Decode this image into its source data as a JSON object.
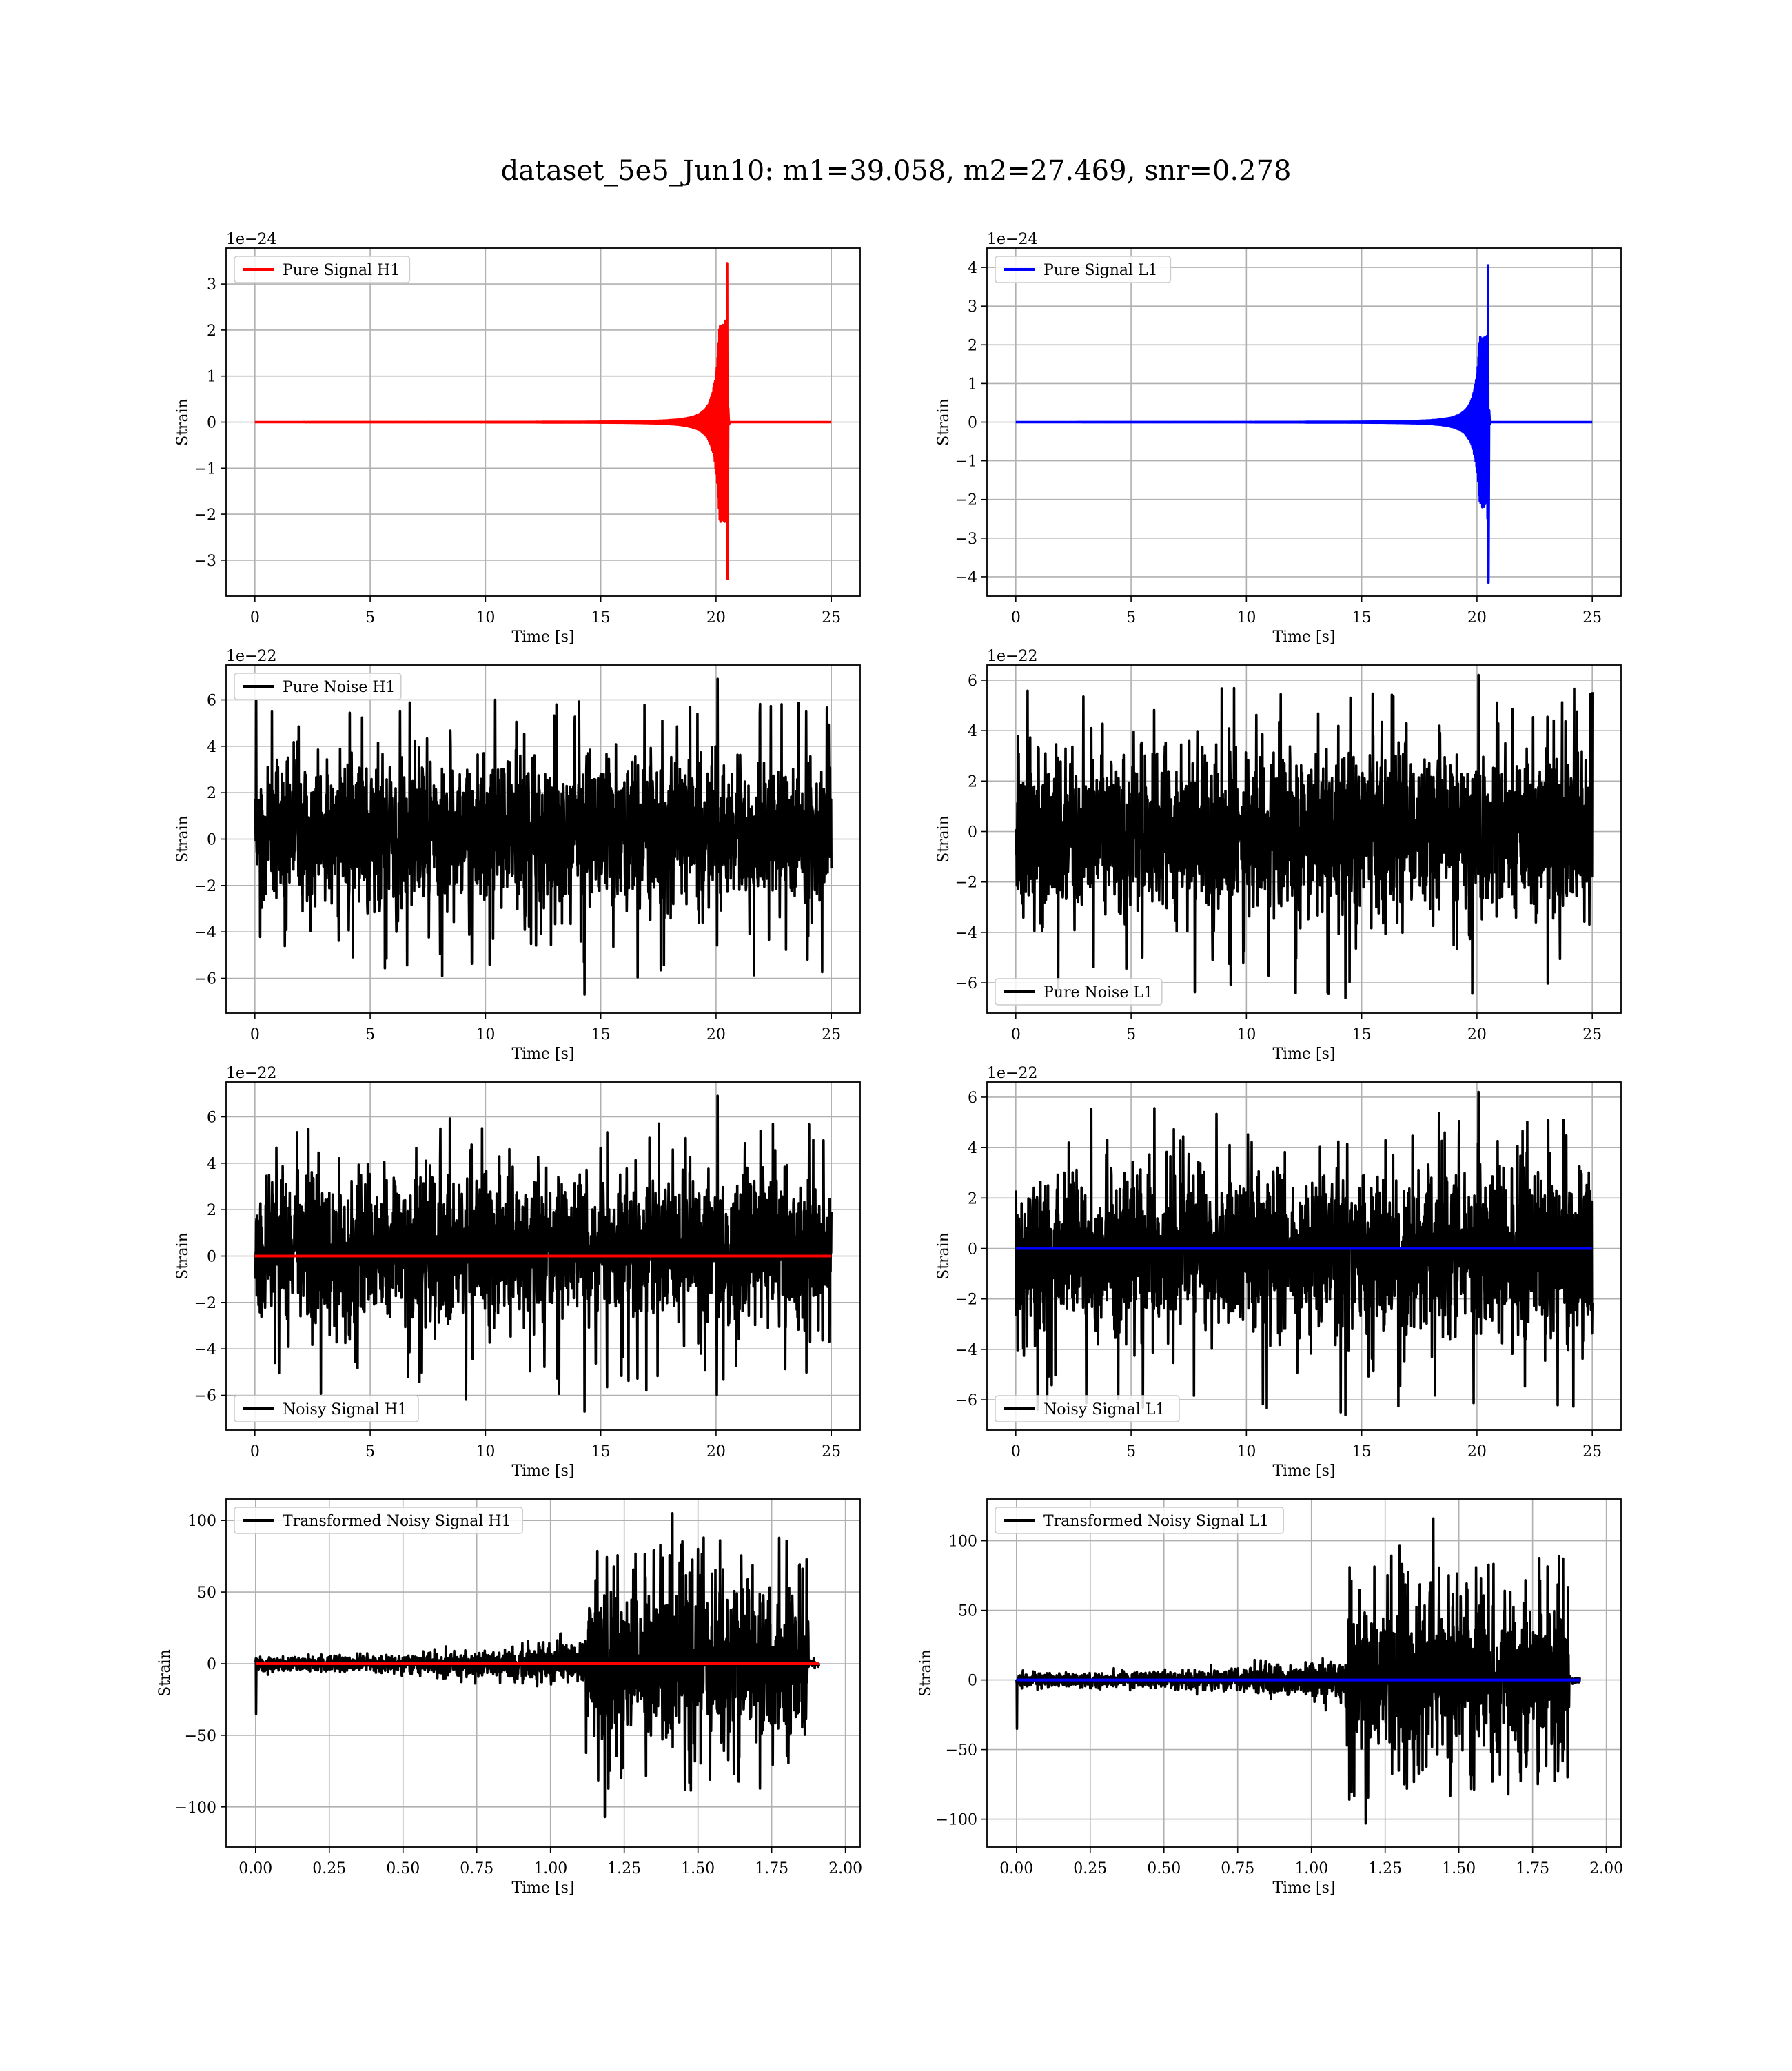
{
  "figure": {
    "title": "dataset_5e5_Jun10: m1=39.058, m2=27.469, snr=0.278"
  },
  "colors": {
    "h1_signal": "#ff0000",
    "l1_signal": "#0000ff",
    "noise": "#000000",
    "grid": "#b0b0b0"
  },
  "chart_data": [
    {
      "type": "line",
      "id": "pure-signal-h1",
      "xlabel": "Time [s]",
      "ylabel": "Strain",
      "offset_text": "1e−24",
      "xlim": [
        -1.25,
        26.25
      ],
      "ylim": [
        -3.78,
        3.78
      ],
      "xticks": [
        0,
        5,
        10,
        15,
        20,
        25
      ],
      "xtick_labels": [
        "0",
        "5",
        "10",
        "15",
        "20",
        "25"
      ],
      "yticks": [
        -3,
        -2,
        -1,
        0,
        1,
        2,
        3
      ],
      "ytick_labels": [
        "−3",
        "−2",
        "−1",
        "0",
        "1",
        "2",
        "3"
      ],
      "grid": true,
      "legend_loc": "upper left",
      "series": [
        {
          "name": "Pure Signal H1",
          "color": "#ff0000",
          "kind": "chirp",
          "x_range": [
            0,
            25
          ],
          "merger_time": 20.5,
          "peak_pos": 3.45,
          "peak_neg": -3.4,
          "envelope_at_19": 0.12,
          "envelope_at_20": 1.1
        }
      ]
    },
    {
      "type": "line",
      "id": "pure-signal-l1",
      "xlabel": "Time [s]",
      "ylabel": "Strain",
      "offset_text": "1e−24",
      "xlim": [
        -1.25,
        26.25
      ],
      "ylim": [
        -4.5,
        4.5
      ],
      "xticks": [
        0,
        5,
        10,
        15,
        20,
        25
      ],
      "xtick_labels": [
        "0",
        "5",
        "10",
        "15",
        "20",
        "25"
      ],
      "yticks": [
        -4,
        -3,
        -2,
        -1,
        0,
        1,
        2,
        3,
        4
      ],
      "ytick_labels": [
        "−4",
        "−3",
        "−2",
        "−1",
        "0",
        "1",
        "2",
        "3",
        "4"
      ],
      "grid": true,
      "legend_loc": "upper left",
      "series": [
        {
          "name": "Pure Signal L1",
          "color": "#0000ff",
          "kind": "chirp",
          "x_range": [
            0,
            25
          ],
          "merger_time": 20.5,
          "peak_pos": 4.05,
          "peak_neg": -4.15,
          "envelope_at_19": 0.14,
          "envelope_at_20": 1.3
        }
      ]
    },
    {
      "type": "line",
      "id": "pure-noise-h1",
      "xlabel": "Time [s]",
      "ylabel": "Strain",
      "offset_text": "1e−22",
      "xlim": [
        -1.25,
        26.25
      ],
      "ylim": [
        -7.5,
        7.5
      ],
      "xticks": [
        0,
        5,
        10,
        15,
        20,
        25
      ],
      "xtick_labels": [
        "0",
        "5",
        "10",
        "15",
        "20",
        "25"
      ],
      "yticks": [
        -6,
        -4,
        -2,
        0,
        2,
        4,
        6
      ],
      "ytick_labels": [
        "−6",
        "−4",
        "−2",
        "0",
        "2",
        "4",
        "6"
      ],
      "grid": true,
      "legend_loc": "upper left",
      "series": [
        {
          "name": "Pure Noise H1",
          "color": "#000000",
          "kind": "noise",
          "x_range": [
            0,
            25
          ],
          "band": [
            -3.0,
            3.5
          ],
          "max": 6.9,
          "min": -6.7
        }
      ]
    },
    {
      "type": "line",
      "id": "pure-noise-l1",
      "xlabel": "Time [s]",
      "ylabel": "Strain",
      "offset_text": "1e−22",
      "xlim": [
        -1.25,
        26.25
      ],
      "ylim": [
        -7.2,
        6.6
      ],
      "xticks": [
        0,
        5,
        10,
        15,
        20,
        25
      ],
      "xtick_labels": [
        "0",
        "5",
        "10",
        "15",
        "20",
        "25"
      ],
      "yticks": [
        -6,
        -4,
        -2,
        0,
        2,
        4,
        6
      ],
      "ytick_labels": [
        "−6",
        "−4",
        "−2",
        "0",
        "2",
        "4",
        "6"
      ],
      "grid": true,
      "legend_loc": "lower left",
      "series": [
        {
          "name": "Pure Noise L1",
          "color": "#000000",
          "kind": "noise",
          "x_range": [
            0,
            25
          ],
          "band": [
            -3.5,
            3.2
          ],
          "max": 6.2,
          "min": -6.6
        }
      ]
    },
    {
      "type": "line",
      "id": "noisy-signal-h1",
      "xlabel": "Time [s]",
      "ylabel": "Strain",
      "offset_text": "1e−22",
      "xlim": [
        -1.25,
        26.25
      ],
      "ylim": [
        -7.5,
        7.5
      ],
      "xticks": [
        0,
        5,
        10,
        15,
        20,
        25
      ],
      "xtick_labels": [
        "0",
        "5",
        "10",
        "15",
        "20",
        "25"
      ],
      "yticks": [
        -6,
        -4,
        -2,
        0,
        2,
        4,
        6
      ],
      "ytick_labels": [
        "−6",
        "−4",
        "−2",
        "0",
        "2",
        "4",
        "6"
      ],
      "grid": true,
      "legend_loc": "lower left",
      "series": [
        {
          "name": "Noisy Signal H1",
          "color": "#000000",
          "kind": "noise",
          "x_range": [
            0,
            25
          ],
          "band": [
            -3.0,
            3.5
          ],
          "max": 6.9,
          "min": -6.7
        },
        {
          "name": "",
          "color": "#ff0000",
          "kind": "flat",
          "x_range": [
            0,
            25
          ],
          "value": 0
        }
      ]
    },
    {
      "type": "line",
      "id": "noisy-signal-l1",
      "xlabel": "Time [s]",
      "ylabel": "Strain",
      "offset_text": "1e−22",
      "xlim": [
        -1.25,
        26.25
      ],
      "ylim": [
        -7.2,
        6.6
      ],
      "xticks": [
        0,
        5,
        10,
        15,
        20,
        25
      ],
      "xtick_labels": [
        "0",
        "5",
        "10",
        "15",
        "20",
        "25"
      ],
      "yticks": [
        -6,
        -4,
        -2,
        0,
        2,
        4,
        6
      ],
      "ytick_labels": [
        "−6",
        "−4",
        "−2",
        "0",
        "2",
        "4",
        "6"
      ],
      "grid": true,
      "legend_loc": "lower left",
      "series": [
        {
          "name": "Noisy Signal L1",
          "color": "#000000",
          "kind": "noise",
          "x_range": [
            0,
            25
          ],
          "band": [
            -3.5,
            3.2
          ],
          "max": 6.2,
          "min": -6.6
        },
        {
          "name": "",
          "color": "#0000ff",
          "kind": "flat",
          "x_range": [
            0,
            25
          ],
          "value": 0
        }
      ]
    },
    {
      "type": "line",
      "id": "transformed-noisy-signal-h1",
      "xlabel": "Time [s]",
      "ylabel": "Strain",
      "offset_text": "",
      "xlim": [
        -0.1,
        2.05
      ],
      "ylim": [
        -128,
        115
      ],
      "xticks": [
        0,
        0.25,
        0.5,
        0.75,
        1.0,
        1.25,
        1.5,
        1.75,
        2.0
      ],
      "xtick_labels": [
        "0.00",
        "0.25",
        "0.50",
        "0.75",
        "1.00",
        "1.25",
        "1.50",
        "1.75",
        "2.00"
      ],
      "yticks": [
        -100,
        -50,
        0,
        50,
        100
      ],
      "ytick_labels": [
        "−100",
        "−50",
        "0",
        "50",
        "100"
      ],
      "grid": true,
      "legend_loc": "upper left",
      "series": [
        {
          "name": "Transformed Noisy Signal H1",
          "color": "#000000",
          "kind": "whitened",
          "x_range": [
            0,
            1.91
          ],
          "step_time": 1.12,
          "end_time": 1.875,
          "early_amp": 5,
          "mid_amp": 14,
          "late_amp": 45,
          "max": 105,
          "min": -107,
          "initial_spike": -35
        },
        {
          "name": "",
          "color": "#ff0000",
          "kind": "flat",
          "x_range": [
            0,
            1.91
          ],
          "value": 0
        }
      ]
    },
    {
      "type": "line",
      "id": "transformed-noisy-signal-l1",
      "xlabel": "Time [s]",
      "ylabel": "Strain",
      "offset_text": "",
      "xlim": [
        -0.1,
        2.05
      ],
      "ylim": [
        -120,
        130
      ],
      "xticks": [
        0,
        0.25,
        0.5,
        0.75,
        1.0,
        1.25,
        1.5,
        1.75,
        2.0
      ],
      "xtick_labels": [
        "0.00",
        "0.25",
        "0.50",
        "0.75",
        "1.00",
        "1.25",
        "1.50",
        "1.75",
        "2.00"
      ],
      "yticks": [
        -100,
        -50,
        0,
        50,
        100
      ],
      "ytick_labels": [
        "−100",
        "−50",
        "0",
        "50",
        "100"
      ],
      "grid": true,
      "legend_loc": "upper left",
      "series": [
        {
          "name": "Transformed Noisy Signal L1",
          "color": "#000000",
          "kind": "whitened",
          "x_range": [
            0,
            1.91
          ],
          "step_time": 1.12,
          "end_time": 1.875,
          "early_amp": 5,
          "mid_amp": 13,
          "late_amp": 45,
          "max": 116,
          "min": -103,
          "initial_spike": -35
        },
        {
          "name": "",
          "color": "#0000ff",
          "kind": "flat",
          "x_range": [
            0,
            1.91
          ],
          "value": 0
        }
      ]
    }
  ]
}
